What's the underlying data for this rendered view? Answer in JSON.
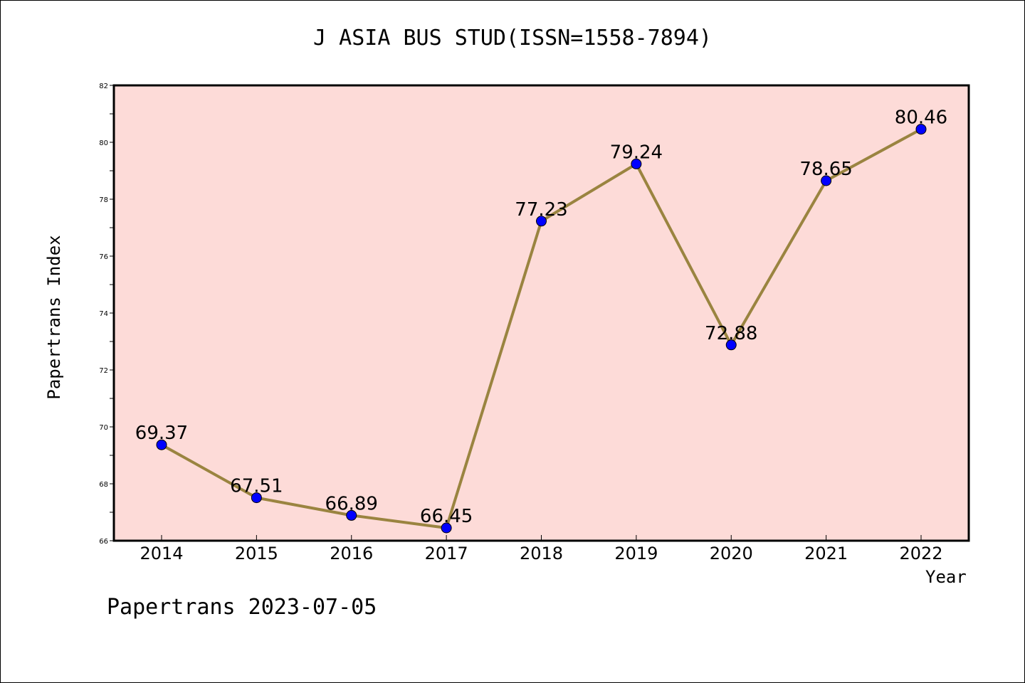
{
  "chart_data": {
    "type": "line",
    "title": "J ASIA BUS STUD(ISSN=1558-7894)",
    "xlabel": "Year",
    "ylabel": "Papertrans Index",
    "categories": [
      "2014",
      "2015",
      "2016",
      "2017",
      "2018",
      "2019",
      "2020",
      "2021",
      "2022"
    ],
    "series": [
      {
        "values": [
          69.37,
          67.51,
          66.89,
          66.45,
          77.23,
          79.24,
          72.88,
          78.65,
          80.46
        ],
        "labels": [
          "69.37",
          "67.51",
          "66.89",
          "66.45",
          "77.23",
          "79.24",
          "72.88",
          "78.65",
          "80.46"
        ],
        "line_color": "#9a8440",
        "marker_color": "#0000ff"
      }
    ],
    "ylim": [
      66,
      82
    ],
    "yticks": [
      "66",
      "68",
      "70",
      "72",
      "74",
      "76",
      "78",
      "80",
      "82"
    ],
    "plot_background": "#fddbd8",
    "grid": false,
    "legend": "none"
  },
  "footer": "Papertrans 2023-07-05"
}
